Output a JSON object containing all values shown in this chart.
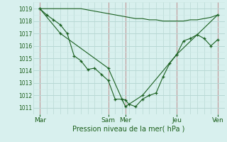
{
  "xlabel": "Pression niveau de la mer( hPa )",
  "bg_color": "#d8f0ee",
  "grid_color_major": "#b8d8d4",
  "grid_color_minor": "#cce8e4",
  "vline_color": "#c09898",
  "line_color": "#1a6020",
  "ylim": [
    1010.5,
    1019.5
  ],
  "yticks": [
    1011,
    1012,
    1013,
    1014,
    1015,
    1016,
    1017,
    1018,
    1019
  ],
  "xlim": [
    0,
    28
  ],
  "day_labels": [
    "Mar",
    "Sam",
    "Mer",
    "Jeu",
    "Ven"
  ],
  "day_x": [
    1,
    11,
    13.5,
    21,
    27
  ],
  "vline_x": [
    1,
    11,
    13.5,
    21,
    27
  ],
  "series1_x": [
    1,
    2,
    3,
    4,
    5,
    6,
    7,
    8,
    9,
    10,
    11,
    12,
    13,
    13.5,
    14,
    15,
    16,
    17,
    18,
    19,
    20,
    21,
    22,
    23,
    24,
    25,
    26,
    27
  ],
  "series1_y": [
    1019,
    1018.5,
    1018.1,
    1017.7,
    1017.0,
    1015.2,
    1014.8,
    1014.1,
    1014.2,
    1013.7,
    1013.2,
    1011.7,
    1011.7,
    1011.65,
    1011.3,
    1011.1,
    1011.7,
    1012.0,
    1012.2,
    1013.5,
    1014.6,
    1015.3,
    1016.4,
    1016.6,
    1016.9,
    1016.6,
    1016.0,
    1016.5
  ],
  "series2_x": [
    1,
    2,
    3,
    4,
    5,
    6,
    7,
    8,
    9,
    10,
    11,
    12,
    13,
    13.5,
    14,
    15,
    16,
    17,
    18,
    19,
    20,
    21,
    22,
    23,
    24,
    25,
    26,
    27
  ],
  "series2_y": [
    1019,
    1019.0,
    1019.0,
    1019.0,
    1019.0,
    1019.0,
    1019.0,
    1018.9,
    1018.8,
    1018.7,
    1018.6,
    1018.5,
    1018.4,
    1018.35,
    1018.3,
    1018.2,
    1018.2,
    1018.1,
    1018.1,
    1018.0,
    1018.0,
    1018.0,
    1018.0,
    1018.1,
    1018.1,
    1018.2,
    1018.3,
    1018.5
  ],
  "series3_x": [
    1,
    4,
    11,
    13.5,
    16,
    21,
    27
  ],
  "series3_y": [
    1019,
    1017.0,
    1014.2,
    1011.1,
    1012.0,
    1015.3,
    1018.5
  ]
}
